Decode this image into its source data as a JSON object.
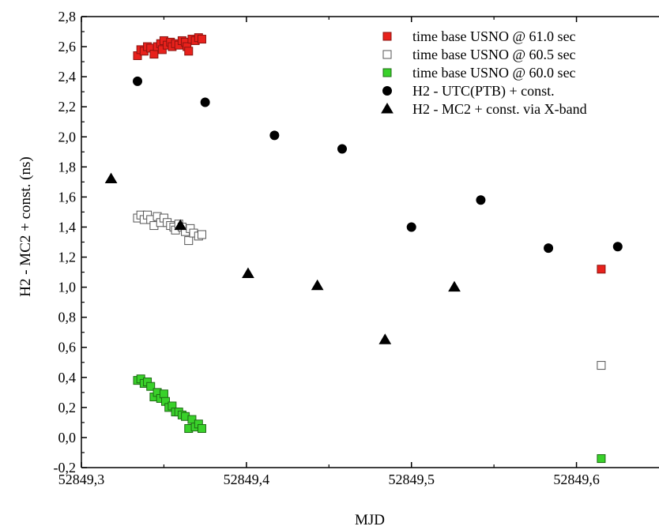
{
  "chart_data": {
    "type": "scatter",
    "xlabel": "MJD",
    "ylabel": "H2 - MC2 + const. (ns)",
    "xlim": [
      52849.3,
      52849.65
    ],
    "ylim": [
      -0.2,
      2.8
    ],
    "x_ticks": [
      "52849,3",
      "52849,4",
      "52849,5",
      "52849,6"
    ],
    "x_tick_values": [
      52849.3,
      52849.4,
      52849.5,
      52849.6
    ],
    "y_ticks": [
      "-0,2",
      "0,0",
      "0,2",
      "0,4",
      "0,6",
      "0,8",
      "1,0",
      "1,2",
      "1,4",
      "1,6",
      "1,8",
      "2,0",
      "2,2",
      "2,4",
      "2,6",
      "2,8"
    ],
    "y_tick_values": [
      -0.2,
      0.0,
      0.2,
      0.4,
      0.6,
      0.8,
      1.0,
      1.2,
      1.4,
      1.6,
      1.8,
      2.0,
      2.2,
      2.4,
      2.6,
      2.8
    ],
    "grid": false,
    "legend_position": "top-right",
    "series": [
      {
        "name": "time base USNO @ 61.0 sec",
        "marker": "square",
        "fill": "#e8211c",
        "stroke": "#8a1410",
        "points": [
          [
            52849.334,
            2.54
          ],
          [
            52849.336,
            2.58
          ],
          [
            52849.338,
            2.57
          ],
          [
            52849.34,
            2.6
          ],
          [
            52849.342,
            2.59
          ],
          [
            52849.344,
            2.55
          ],
          [
            52849.346,
            2.6
          ],
          [
            52849.348,
            2.62
          ],
          [
            52849.349,
            2.58
          ],
          [
            52849.35,
            2.64
          ],
          [
            52849.352,
            2.61
          ],
          [
            52849.354,
            2.63
          ],
          [
            52849.355,
            2.6
          ],
          [
            52849.357,
            2.62
          ],
          [
            52849.359,
            2.61
          ],
          [
            52849.361,
            2.64
          ],
          [
            52849.363,
            2.63
          ],
          [
            52849.364,
            2.6
          ],
          [
            52849.365,
            2.57
          ],
          [
            52849.367,
            2.65
          ],
          [
            52849.369,
            2.64
          ],
          [
            52849.371,
            2.66
          ],
          [
            52849.373,
            2.65
          ]
        ]
      },
      {
        "name": "time base USNO @ 60.5 sec",
        "marker": "square",
        "fill": "#ffffff",
        "stroke": "#555555",
        "points": [
          [
            52849.334,
            1.46
          ],
          [
            52849.336,
            1.48
          ],
          [
            52849.338,
            1.45
          ],
          [
            52849.34,
            1.48
          ],
          [
            52849.342,
            1.45
          ],
          [
            52849.344,
            1.41
          ],
          [
            52849.346,
            1.47
          ],
          [
            52849.348,
            1.43
          ],
          [
            52849.35,
            1.46
          ],
          [
            52849.352,
            1.43
          ],
          [
            52849.354,
            1.41
          ],
          [
            52849.356,
            1.4
          ],
          [
            52849.357,
            1.38
          ],
          [
            52849.359,
            1.42
          ],
          [
            52849.361,
            1.4
          ],
          [
            52849.363,
            1.37
          ],
          [
            52849.365,
            1.31
          ],
          [
            52849.366,
            1.39
          ],
          [
            52849.368,
            1.36
          ],
          [
            52849.371,
            1.34
          ],
          [
            52849.373,
            1.35
          ]
        ]
      },
      {
        "name": "time base USNO @ 60.0 sec",
        "marker": "square",
        "fill": "#39d12a",
        "stroke": "#1d6a14",
        "points": [
          [
            52849.334,
            0.38
          ],
          [
            52849.336,
            0.39
          ],
          [
            52849.338,
            0.36
          ],
          [
            52849.34,
            0.37
          ],
          [
            52849.342,
            0.34
          ],
          [
            52849.344,
            0.27
          ],
          [
            52849.346,
            0.3
          ],
          [
            52849.348,
            0.26
          ],
          [
            52849.35,
            0.29
          ],
          [
            52849.351,
            0.24
          ],
          [
            52849.353,
            0.2
          ],
          [
            52849.355,
            0.21
          ],
          [
            52849.357,
            0.17
          ],
          [
            52849.359,
            0.17
          ],
          [
            52849.361,
            0.15
          ],
          [
            52849.363,
            0.14
          ],
          [
            52849.365,
            0.06
          ],
          [
            52849.367,
            0.12
          ],
          [
            52849.369,
            0.07
          ],
          [
            52849.371,
            0.09
          ],
          [
            52849.373,
            0.06
          ]
        ]
      },
      {
        "name": "H2 - UTC(PTB) + const.",
        "marker": "circle",
        "fill": "#000000",
        "stroke": "#000000",
        "points": [
          [
            52849.334,
            2.37
          ],
          [
            52849.375,
            2.23
          ],
          [
            52849.417,
            2.01
          ],
          [
            52849.458,
            1.92
          ],
          [
            52849.5,
            1.4
          ],
          [
            52849.542,
            1.58
          ],
          [
            52849.583,
            1.26
          ],
          [
            52849.625,
            1.27
          ]
        ]
      },
      {
        "name": "H2 - MC2 + const. via X-band",
        "marker": "triangle",
        "fill": "#000000",
        "stroke": "#000000",
        "points": [
          [
            52849.318,
            1.72
          ],
          [
            52849.36,
            1.41
          ],
          [
            52849.401,
            1.09
          ],
          [
            52849.443,
            1.01
          ],
          [
            52849.484,
            0.65
          ],
          [
            52849.526,
            1.0
          ]
        ]
      },
      {
        "name": "",
        "marker": "square",
        "fill": "#e8211c",
        "stroke": "#8a1410",
        "points": [
          [
            52849.615,
            1.12
          ]
        ]
      },
      {
        "name": "",
        "marker": "square",
        "fill": "#ffffff",
        "stroke": "#555555",
        "points": [
          [
            52849.615,
            0.48
          ]
        ]
      },
      {
        "name": "",
        "marker": "square",
        "fill": "#39d12a",
        "stroke": "#1d6a14",
        "points": [
          [
            52849.615,
            -0.14
          ]
        ]
      }
    ]
  }
}
